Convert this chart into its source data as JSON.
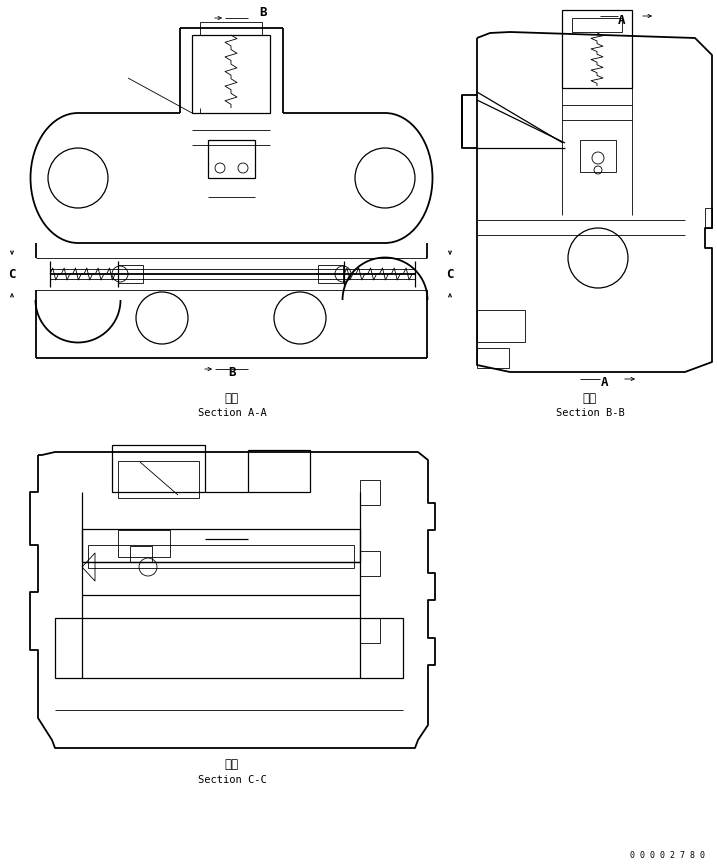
{
  "bg_color": "#ffffff",
  "line_color": "#000000",
  "lw_thin": 0.6,
  "lw_main": 0.9,
  "lw_thick": 1.3,
  "section_aa_cn": "断面",
  "section_aa_en": "Section A-A",
  "section_bb_cn": "断面",
  "section_bb_en": "Section B-B",
  "section_cc_cn": "断面",
  "section_cc_en": "Section C-C",
  "doc_number": "0 0 0 0 2 7 8 0"
}
